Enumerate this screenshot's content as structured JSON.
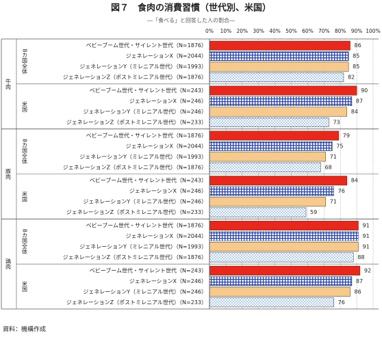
{
  "chart_data": {
    "type": "hbar-panels",
    "title": "図７　食肉の消費習慣（世代別、米国）",
    "subtitle": "―「食べる」と回答した人の割合―",
    "source": "資料：機構作成",
    "xlim": [
      0,
      100
    ],
    "xticks": [
      {
        "value": 0,
        "label": "0%"
      },
      {
        "value": 10,
        "label": "10%"
      },
      {
        "value": 20,
        "label": "20%"
      },
      {
        "value": 30,
        "label": "30%"
      },
      {
        "value": 40,
        "label": "40%"
      },
      {
        "value": 50,
        "label": "50%"
      },
      {
        "value": 60,
        "label": "60%"
      },
      {
        "value": 70,
        "label": "70%"
      },
      {
        "value": 80,
        "label": "80%"
      },
      {
        "value": 90,
        "label": "90%"
      },
      {
        "value": 100,
        "label": "100%"
      }
    ],
    "grid": true,
    "styles": [
      {
        "color": "#e8281c",
        "pattern": "solid"
      },
      {
        "color": "#2b46a8",
        "pattern": "check"
      },
      {
        "color": "#f6c98c",
        "pattern": "solid"
      },
      {
        "color": "#3f7fc4",
        "pattern": "dots"
      }
    ],
    "panels": [
      {
        "meat": "牛肉",
        "regions": [
          {
            "name": "8カ国全体",
            "bars": [
              {
                "label": "ベビーブーム世代・サイレント世代（N=1876）",
                "value": 86
              },
              {
                "label": "ジェネレーションX（N=2044）",
                "value": 85
              },
              {
                "label": "ジェネレーションY（ミレニアル世代）（N=1993）",
                "value": 85
              },
              {
                "label": "ジェネレーションZ（ポストミレニアル世代）（N=1876）",
                "value": 82
              }
            ]
          },
          {
            "name": "米国",
            "bars": [
              {
                "label": "ベビーブーム世代・サイレント世代（N=243）",
                "value": 90
              },
              {
                "label": "ジェネレーションX（N=246）",
                "value": 87
              },
              {
                "label": "ジェネレーションY（ミレニアル世代）（N=246）",
                "value": 84
              },
              {
                "label": "ジェネレーションZ（ポストミレニアル世代）（N=233）",
                "value": 73
              }
            ]
          }
        ]
      },
      {
        "meat": "豚肉",
        "regions": [
          {
            "name": "8カ国全体",
            "bars": [
              {
                "label": "ベビーブーム世代・サイレント世代（N=1876）",
                "value": 79
              },
              {
                "label": "ジェネレーションX（N=2044）",
                "value": 75
              },
              {
                "label": "ジェネレーションY（ミレニアル世代）（N=1993）",
                "value": 71
              },
              {
                "label": "ジェネレーションZ（ポストミレニアル世代）（N=1876）",
                "value": 68
              }
            ]
          },
          {
            "name": "米国",
            "bars": [
              {
                "label": "ベビーブーム世代・サイレント世代（N=243）",
                "value": 84
              },
              {
                "label": "ジェネレーションX（N=246）",
                "value": 76
              },
              {
                "label": "ジェネレーションY（ミレニアル世代）（N=246）",
                "value": 71
              },
              {
                "label": "ジェネレーションZ（ポストミレニアル世代）（N=233）",
                "value": 59
              }
            ]
          }
        ]
      },
      {
        "meat": "鶏肉",
        "regions": [
          {
            "name": "8カ国全体",
            "bars": [
              {
                "label": "ベビーブーム世代・サイレント世代（N=1876）",
                "value": 91
              },
              {
                "label": "ジェネレーションX（N=2044）",
                "value": 91
              },
              {
                "label": "ジェネレーションY（ミレニアル世代）（N=1993）",
                "value": 91
              },
              {
                "label": "ジェネレーションZ（ポストミレニアル世代）（N=1876）",
                "value": 88
              }
            ]
          },
          {
            "name": "米国",
            "bars": [
              {
                "label": "ベビーブーム世代・サイレント世代（N=243）",
                "value": 92
              },
              {
                "label": "ジェネレーションX（N=246）",
                "value": 87
              },
              {
                "label": "ジェネレーションY（ミレニアル世代）（N=246）",
                "value": 86
              },
              {
                "label": "ジェネレーションZ（ポストミレニアル世代）（N=233）",
                "value": 76
              }
            ]
          }
        ]
      }
    ]
  }
}
